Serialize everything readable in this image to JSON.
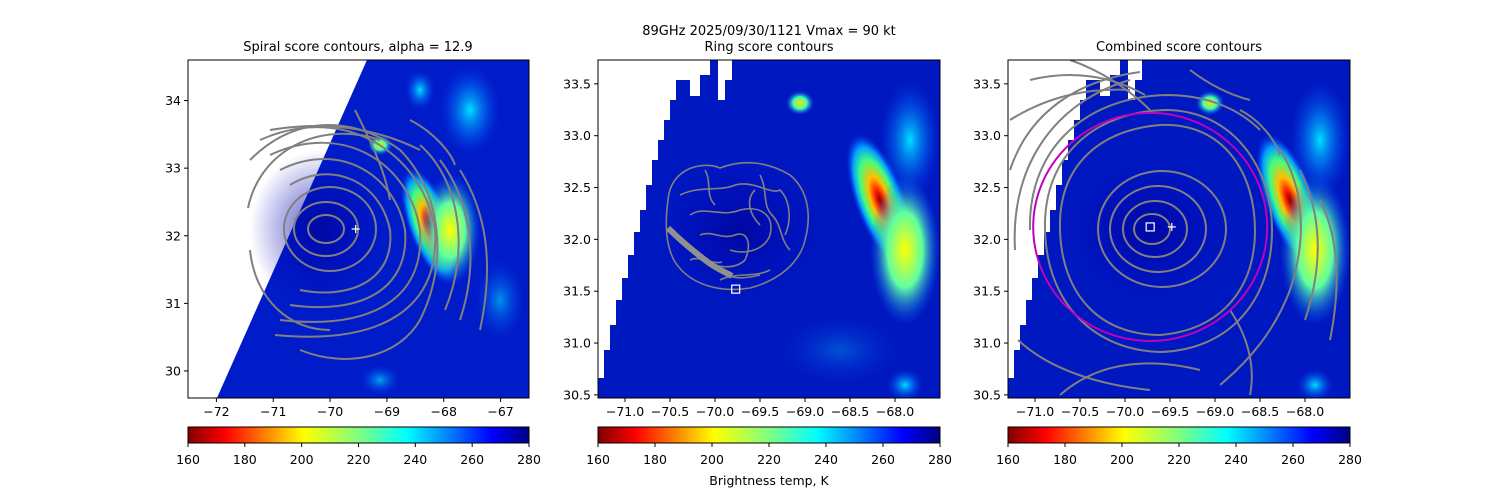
{
  "figure": {
    "suptitle_line1": "89GHz  2025/09/30/1121    Vmax = 90 kt",
    "colorbar_label": "Brightness temp, K"
  },
  "colorbar": {
    "ticks": [
      "160",
      "180",
      "200",
      "220",
      "240",
      "260",
      "280"
    ],
    "colormap": "jet",
    "range": [
      160,
      280
    ],
    "stops": [
      "#800000",
      "#ff0000",
      "#ff8000",
      "#ffff00",
      "#80ff80",
      "#00ffff",
      "#0080ff",
      "#0000ff",
      "#000080"
    ]
  },
  "chart_data": [
    {
      "type": "heatmap",
      "title": "Spiral score contours, alpha = 12.9",
      "xlim": [
        -72.5,
        -66.5
      ],
      "ylim": [
        29.6,
        34.6
      ],
      "xticks": [
        "-72",
        "-71",
        "-70",
        "-69",
        "-68",
        "-67"
      ],
      "yticks": [
        "30",
        "31",
        "32",
        "33",
        "34"
      ],
      "markers": [
        {
          "type": "plus",
          "x": -69.55,
          "y": 32.1,
          "color": "#ffffff"
        }
      ],
      "overlay": "spiral score contours (gray)"
    },
    {
      "type": "heatmap",
      "title": "Ring score contours",
      "xlim": [
        -71.3,
        -67.5
      ],
      "ylim": [
        30.47,
        33.73
      ],
      "xticks": [
        "-71.0",
        "-70.5",
        "-70.0",
        "-69.5",
        "-69.0",
        "-68.5",
        "-68.0"
      ],
      "yticks": [
        "30.5",
        "31.0",
        "31.5",
        "32.0",
        "32.5",
        "33.0",
        "33.5"
      ],
      "markers": [
        {
          "type": "square",
          "x": -69.77,
          "y": 31.52,
          "color": "#ffffff"
        }
      ],
      "overlay": "ring score contours (gray)"
    },
    {
      "type": "heatmap",
      "title": "Combined score contours",
      "xlim": [
        -71.3,
        -67.5
      ],
      "ylim": [
        30.47,
        33.73
      ],
      "xticks": [
        "-71.0",
        "-70.5",
        "-70.0",
        "-69.5",
        "-69.0",
        "-68.5",
        "-68.0"
      ],
      "yticks": [
        "30.5",
        "31.0",
        "31.5",
        "32.0",
        "32.5",
        "33.0",
        "33.5"
      ],
      "markers": [
        {
          "type": "square",
          "x": -69.72,
          "y": 32.12,
          "color": "#ffffff"
        },
        {
          "type": "plus",
          "x": -69.48,
          "y": 32.12,
          "color": "#ffffff"
        }
      ],
      "circle": {
        "cx": -69.72,
        "cy": 32.12,
        "rx_deg": 1.3,
        "ry_deg": 1.1,
        "color": "#c000c0"
      },
      "overlay": "combined score contours (gray)"
    }
  ]
}
